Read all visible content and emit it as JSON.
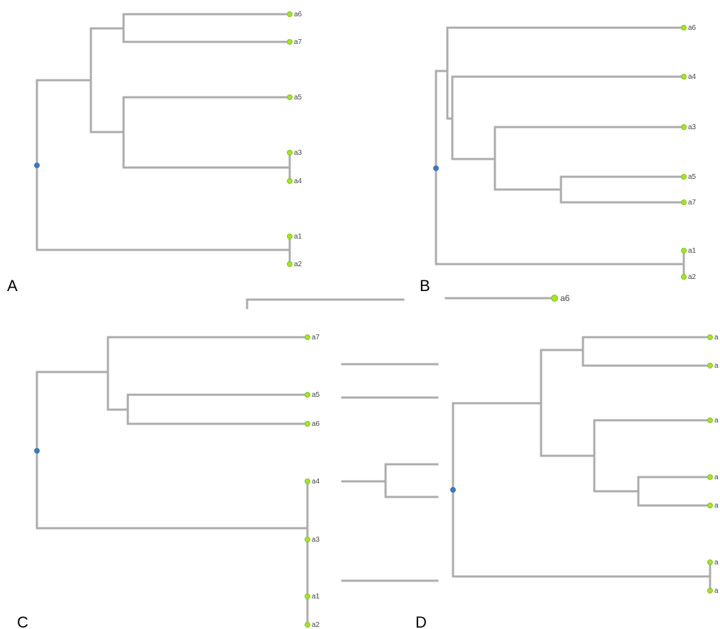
{
  "panels": [
    {
      "id": "A",
      "label": "A",
      "tips": [
        "a6",
        "a7",
        "a5",
        "a3",
        "a4",
        "a1",
        "a2"
      ]
    },
    {
      "id": "B",
      "label": "B",
      "tips": [
        "a6",
        "a4",
        "a3",
        "a5",
        "a7",
        "a1",
        "a2"
      ]
    },
    {
      "id": "C",
      "label": "C",
      "tips": [
        "a7",
        "a5",
        "a6",
        "a4",
        "a3",
        "a1",
        "a2"
      ]
    },
    {
      "id": "D",
      "label": "D",
      "tips": [
        "a",
        "a",
        "a",
        "a",
        "a",
        "a",
        "a"
      ]
    },
    {
      "id": "fragment",
      "label": "",
      "tips": [
        "a6"
      ]
    }
  ],
  "colors": {
    "edge": "#acacac",
    "leaf": "#a6e22e",
    "root": "#3f79b8"
  }
}
